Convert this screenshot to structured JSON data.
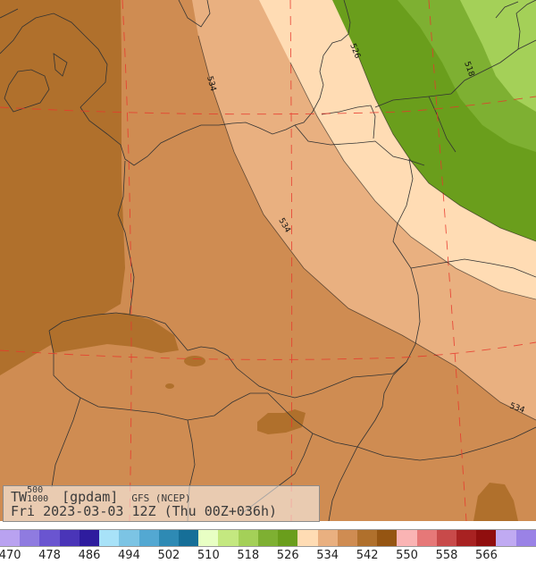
{
  "header": {
    "variable": "TW",
    "level_top": "500",
    "level_bottom": "1000",
    "units": "[gpdam]",
    "model": "GFS (NCEP)",
    "valid_time": "Fri 2023-03-03 12Z (Thu 00Z+036h)"
  },
  "contour_labels": [
    "534",
    "534",
    "526",
    "518",
    "534"
  ],
  "legend": {
    "levels": [
      {
        "label": "470",
        "color": "#b9a2f0"
      },
      {
        "label": "",
        "color": "#8f7be0"
      },
      {
        "label": "478",
        "color": "#6a55d0"
      },
      {
        "label": "",
        "color": "#4a35b8"
      },
      {
        "label": "486",
        "color": "#2e1c9e"
      },
      {
        "label": "",
        "color": "#a8e2f8"
      },
      {
        "label": "494",
        "color": "#7cc4e4"
      },
      {
        "label": "",
        "color": "#53a8d2"
      },
      {
        "label": "502",
        "color": "#2e8ab4"
      },
      {
        "label": "",
        "color": "#166f98"
      },
      {
        "label": "510",
        "color": "#e8ffc4"
      },
      {
        "label": "",
        "color": "#c4e880"
      },
      {
        "label": "518",
        "color": "#a4d058"
      },
      {
        "label": "",
        "color": "#7eb032"
      },
      {
        "label": "526",
        "color": "#6a9e1c"
      },
      {
        "label": "",
        "color": "#ffdcb4"
      },
      {
        "label": "534",
        "color": "#e9b080"
      },
      {
        "label": "",
        "color": "#cf8c52"
      },
      {
        "label": "542",
        "color": "#b0702c"
      },
      {
        "label": "",
        "color": "#955512"
      },
      {
        "label": "550",
        "color": "#fab4b4"
      },
      {
        "label": "",
        "color": "#e67878"
      },
      {
        "label": "558",
        "color": "#c84a4a"
      },
      {
        "label": "",
        "color": "#a82222"
      },
      {
        "label": "566",
        "color": "#900e0e"
      },
      {
        "label": "",
        "color": "#c0aaf2"
      },
      {
        "label": "",
        "color": "#9a82e6"
      }
    ]
  }
}
